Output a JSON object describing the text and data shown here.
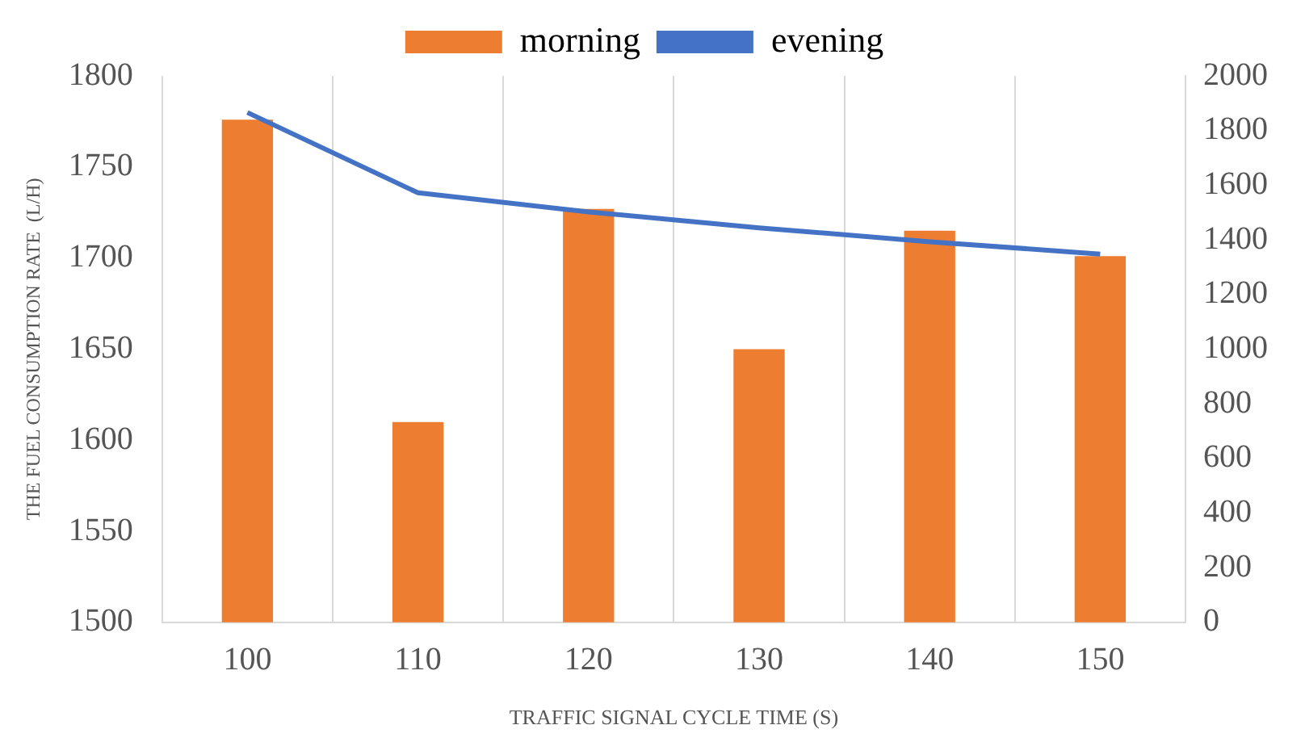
{
  "chart_data": {
    "type": "bar",
    "xlabel": "TRAFFIC SIGNAL CYCLE TIME (S)",
    "ylabel": "THE FUEL CONSUMPTION RATE  (L/H)",
    "categories": [
      "100",
      "110",
      "120",
      "130",
      "140",
      "150"
    ],
    "series": [
      {
        "name": "morning",
        "color": "#ed7d31",
        "values": [
          1776,
          1610,
          1727,
          1650,
          1715,
          1701
        ]
      },
      {
        "name": "evening",
        "type": "line",
        "axis": "y2",
        "color": "#4472c4",
        "values": [
          1866,
          1572,
          1502,
          1444,
          1393,
          1348
        ]
      }
    ],
    "ylim": [
      1500,
      1800
    ],
    "yticks": [
      1500,
      1550,
      1600,
      1650,
      1700,
      1750,
      1800
    ],
    "y2lim": [
      0,
      2000
    ],
    "y2ticks": [
      0,
      200,
      400,
      600,
      800,
      1000,
      1200,
      1400,
      1600,
      1800,
      2000
    ],
    "grid": "x",
    "legend": "top",
    "marker": "none"
  }
}
